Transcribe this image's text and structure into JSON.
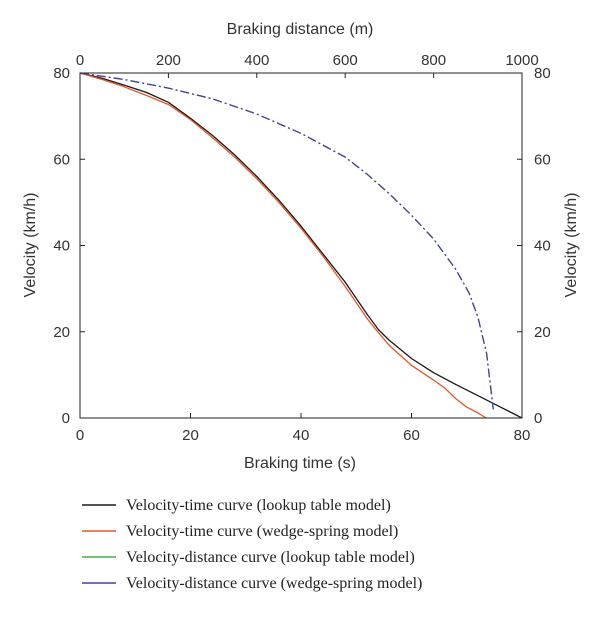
{
  "chart_data": {
    "type": "line",
    "title": "",
    "x_bottom": {
      "label": "Braking time (s)",
      "lim": [
        0,
        80
      ],
      "ticks": [
        0,
        20,
        40,
        60,
        80
      ]
    },
    "x_top": {
      "label": "Braking distance (m)",
      "lim": [
        0,
        1000
      ],
      "ticks": [
        0,
        200,
        400,
        600,
        800,
        1000
      ]
    },
    "y_left": {
      "label": "Velocity (km/h)",
      "lim": [
        0,
        80
      ],
      "ticks": [
        0,
        20,
        40,
        60,
        80
      ]
    },
    "y_right": {
      "label": "Velocity (km/h)",
      "lim": [
        0,
        80
      ],
      "ticks": [
        0,
        20,
        40,
        60,
        80
      ]
    },
    "grid": false,
    "legend_position": "bottom",
    "series": [
      {
        "name": "Velocity-time curve (lookup table model)",
        "axis": "time",
        "color": "#1a1a1a",
        "dash": "solid",
        "x": [
          0,
          4,
          8,
          12,
          16,
          20,
          24,
          28,
          32,
          36,
          40,
          44,
          48,
          52,
          54,
          56,
          60,
          64,
          68,
          72,
          76,
          80
        ],
        "y": [
          80,
          78.8,
          77.2,
          75.5,
          73.2,
          69.5,
          65.5,
          61,
          56,
          50.5,
          44.5,
          38,
          31.5,
          24,
          20.5,
          18,
          13.8,
          10.5,
          7.8,
          5.2,
          2.6,
          0
        ]
      },
      {
        "name": "Velocity-time curve (wedge-spring model)",
        "axis": "time",
        "color": "#e5562a",
        "dash": "solid",
        "x": [
          0,
          4,
          8,
          12,
          16,
          20,
          24,
          28,
          32,
          36,
          40,
          44,
          48,
          52,
          54,
          56,
          60,
          64,
          66,
          68,
          70,
          72,
          73.5
        ],
        "y": [
          80,
          78.5,
          76.8,
          74.8,
          72.7,
          69.2,
          65,
          60.5,
          55.5,
          50,
          44,
          37.5,
          30.5,
          23,
          19.8,
          16.8,
          12.2,
          8.8,
          7,
          4.5,
          2.5,
          1.2,
          0
        ]
      },
      {
        "name": "Velocity-distance curve (lookup table model)",
        "axis": "distance",
        "color": "#4caf50",
        "dash": "dashdot",
        "x": [
          0,
          100,
          200,
          300,
          400,
          500,
          600,
          650,
          700,
          750,
          800,
          850,
          880,
          900,
          920,
          935
        ],
        "y": [
          80,
          78.5,
          76.5,
          74,
          70.5,
          66,
          60.5,
          56.5,
          52,
          47,
          41.5,
          34.5,
          29,
          23.5,
          15,
          2
        ]
      },
      {
        "name": "Velocity-distance curve (wedge-spring model)",
        "axis": "distance",
        "color": "#4b3f9e",
        "dash": "dashdot",
        "x": [
          0,
          100,
          200,
          300,
          400,
          500,
          600,
          650,
          700,
          750,
          800,
          850,
          880,
          900,
          920,
          935
        ],
        "y": [
          80,
          78.5,
          76.5,
          74,
          70.5,
          66,
          60.5,
          56.5,
          52,
          47,
          41.5,
          34.5,
          29,
          23.5,
          15,
          2
        ]
      }
    ]
  }
}
